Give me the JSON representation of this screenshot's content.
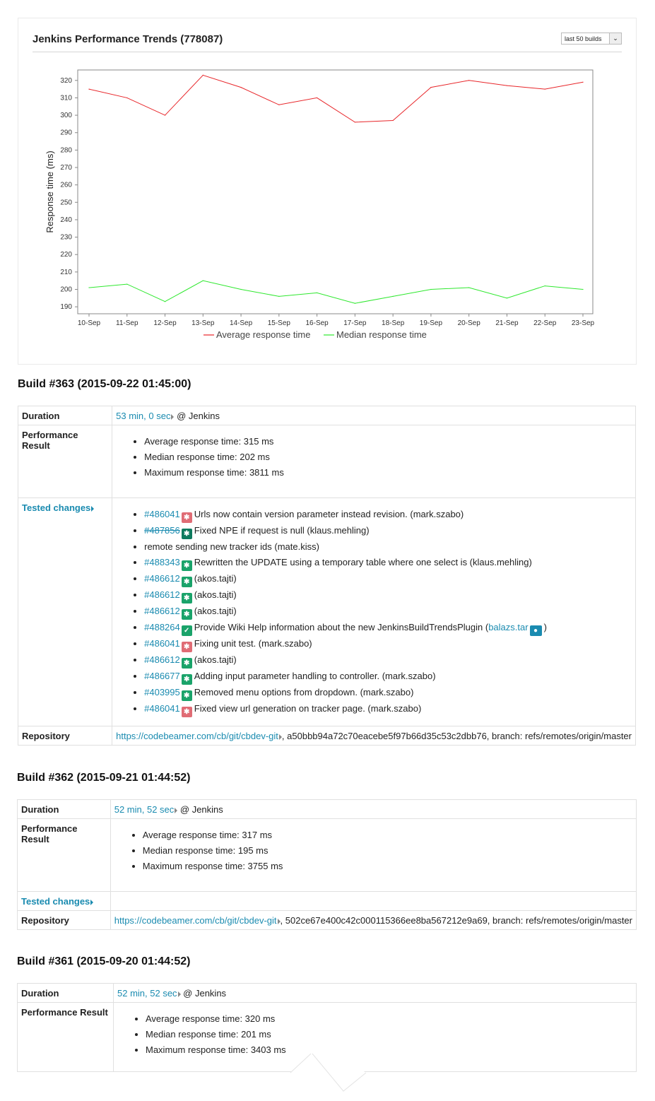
{
  "chart": {
    "title": "Jenkins Performance Trends (778087)",
    "range_select": "last 50 builds"
  },
  "chart_data": {
    "type": "line",
    "title": "Jenkins Performance Trends (778087)",
    "xlabel": "",
    "ylabel": "Response time (ms)",
    "categories": [
      "10-Sep",
      "11-Sep",
      "12-Sep",
      "13-Sep",
      "14-Sep",
      "15-Sep",
      "16-Sep",
      "17-Sep",
      "18-Sep",
      "19-Sep",
      "20-Sep",
      "21-Sep",
      "22-Sep",
      "23-Sep"
    ],
    "ylim": [
      186,
      326
    ],
    "yticks": [
      190,
      200,
      210,
      220,
      230,
      240,
      250,
      260,
      270,
      280,
      290,
      300,
      310,
      320
    ],
    "legend": "bottom",
    "grid": false,
    "series": [
      {
        "name": "Average response time",
        "color": "#e8262a",
        "values": [
          315,
          310,
          300,
          323,
          316,
          306,
          310,
          296,
          297,
          316,
          320,
          317,
          315,
          319
        ]
      },
      {
        "name": "Median response time",
        "color": "#2ee82e",
        "values": [
          201,
          203,
          193,
          205,
          200,
          196,
          198,
          192,
          196,
          200,
          201,
          195,
          202,
          200
        ]
      }
    ]
  },
  "builds": [
    {
      "title": "Build #363 (2015-09-22 01:45:00)",
      "labels": {
        "duration": "Duration",
        "performance": "Performance Result",
        "changes": "Tested changes",
        "repository": "Repository"
      },
      "duration": "53 min, 0 sec",
      "duration_suffix": " @ Jenkins",
      "perf": [
        "Average response time: 315 ms",
        "Median response time: 202 ms",
        "Maximum response time: 3811 ms"
      ],
      "changes": [
        {
          "id": "#486041",
          "badge": "bug",
          "text": "Urls now contain version parameter instead revision. (mark.szabo)"
        },
        {
          "id": "#487856",
          "badge": "dark",
          "strike": true,
          "text": "Fixed NPE if request is null (klaus.mehling)"
        },
        {
          "id": "",
          "badge": "",
          "text": "remote sending new tracker ids (mate.kiss)"
        },
        {
          "id": "#488343",
          "badge": "task",
          "text": "Rewritten the UPDATE using a temporary table where one select is (klaus.mehling)"
        },
        {
          "id": "#486612",
          "badge": "task",
          "text": "(akos.tajti)"
        },
        {
          "id": "#486612",
          "badge": "task",
          "text": "(akos.tajti)"
        },
        {
          "id": "#486612",
          "badge": "task",
          "text": "(akos.tajti)"
        },
        {
          "id": "#488264",
          "badge": "check",
          "text": "Provide Wiki Help information about the new JenkinsBuildTrendsPlugin (",
          "user": "balazs.tar",
          "tail": ")"
        },
        {
          "id": "#486041",
          "badge": "bug",
          "text": "Fixing unit test. (mark.szabo)"
        },
        {
          "id": "#486612",
          "badge": "task",
          "text": "(akos.tajti)"
        },
        {
          "id": "#486677",
          "badge": "task",
          "text": "Adding input parameter handling to controller. (mark.szabo)"
        },
        {
          "id": "#403995",
          "badge": "task",
          "text": "Removed menu options from dropdown. (mark.szabo)"
        },
        {
          "id": "#486041",
          "badge": "bug",
          "text": "Fixed view url generation on tracker page. (mark.szabo)"
        }
      ],
      "repo_url": "https://codebeamer.com/cb/git/cbdev-git",
      "repo_rest": ", a50bbb94a72c70eacebe5f97b66d35c53c2dbb76, branch: refs/remotes/origin/master"
    },
    {
      "title": "Build #362 (2015-09-21 01:44:52)",
      "labels": {
        "duration": "Duration",
        "performance": "Performance Result",
        "changes": "Tested changes",
        "repository": "Repository"
      },
      "duration": "52 min, 52 sec",
      "duration_suffix": " @ Jenkins",
      "perf": [
        "Average response time: 317 ms",
        "Median response time: 195 ms",
        "Maximum response time: 3755 ms"
      ],
      "repo_url": "https://codebeamer.com/cb/git/cbdev-git",
      "repo_rest": ", 502ce67e400c42c000115366ee8ba567212e9a69, branch: refs/remotes/origin/master"
    },
    {
      "title": "Build #361 (2015-09-20 01:44:52)",
      "labels": {
        "duration": "Duration",
        "performance": "Performance Result"
      },
      "duration": "52 min, 52 sec",
      "duration_suffix": " @ Jenkins",
      "perf": [
        "Average response time: 320 ms",
        "Median response time: 201 ms",
        "Maximum response time: 3403 ms"
      ]
    }
  ]
}
